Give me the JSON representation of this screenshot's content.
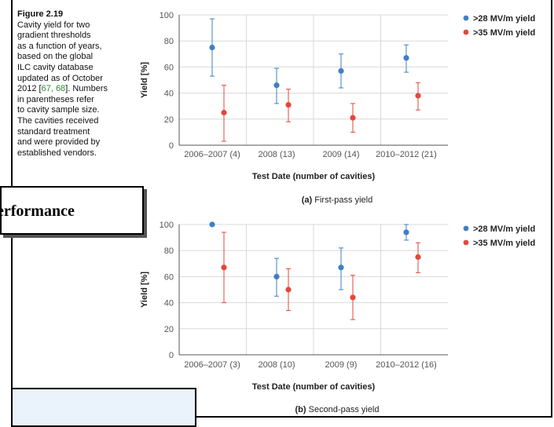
{
  "caption": {
    "figure": "Figure 2.19",
    "lines": [
      "Cavity yield for two",
      "gradient thresholds",
      "as a function of years,",
      "based on the global",
      "ILC cavity database",
      "updated as of October",
      "2012 [",
      "]. Numbers",
      "in parentheses refer",
      "to cavity sample size.",
      "The cavities received",
      "standard treatment",
      "and were provided by",
      "established vendors."
    ],
    "citation": "67, 68"
  },
  "overlay": {
    "performance_text": "erformance"
  },
  "colors": {
    "blue": "#3f7fc5",
    "red": "#e5473a",
    "grid": "#d9d9d9",
    "axis": "#555555"
  },
  "chart_data": [
    {
      "type": "scatter",
      "subtitle_label": "(a)",
      "subtitle_text": "First-pass yield",
      "xlabel": "Test Date (number of cavities)",
      "ylabel": "Yield [%]",
      "ylim": [
        0,
        100
      ],
      "yticks": [
        "0",
        "20",
        "40",
        "60",
        "80",
        "100"
      ],
      "categories": [
        "2006–2007 (4)",
        "2008 (13)",
        "2009 (14)",
        "2010–2012 (21)"
      ],
      "legend_position": "top-right",
      "grid": true,
      "series": [
        {
          "name": ">28 MV/m yield",
          "color": "#3f7fc5",
          "values": [
            75,
            46,
            57,
            67
          ],
          "err_low": [
            53,
            32,
            44,
            56
          ],
          "err_high": [
            97,
            59,
            70,
            77
          ]
        },
        {
          "name": ">35 MV/m yield",
          "color": "#e5473a",
          "values": [
            25,
            31,
            21,
            38
          ],
          "err_low": [
            3,
            18,
            10,
            27
          ],
          "err_high": [
            46,
            43,
            32,
            48
          ]
        }
      ]
    },
    {
      "type": "scatter",
      "subtitle_label": "(b)",
      "subtitle_text": "Second-pass yield",
      "xlabel": "Test Date (number of cavities)",
      "ylabel": "Yield [%]",
      "ylim": [
        0,
        100
      ],
      "yticks": [
        "0",
        "20",
        "40",
        "60",
        "80",
        "100"
      ],
      "categories": [
        "2006–2007 (3)",
        "2008 (10)",
        "2009 (9)",
        "2010–2012 (16)"
      ],
      "legend_position": "top-right",
      "grid": true,
      "series": [
        {
          "name": ">28 MV/m yield",
          "color": "#3f7fc5",
          "values": [
            100,
            60,
            67,
            94
          ],
          "err_low": [
            100,
            45,
            50,
            88
          ],
          "err_high": [
            100,
            74,
            82,
            100
          ]
        },
        {
          "name": ">35 MV/m yield",
          "color": "#e5473a",
          "values": [
            67,
            50,
            44,
            75
          ],
          "err_low": [
            40,
            34,
            27,
            63
          ],
          "err_high": [
            94,
            66,
            61,
            86
          ]
        }
      ]
    }
  ]
}
